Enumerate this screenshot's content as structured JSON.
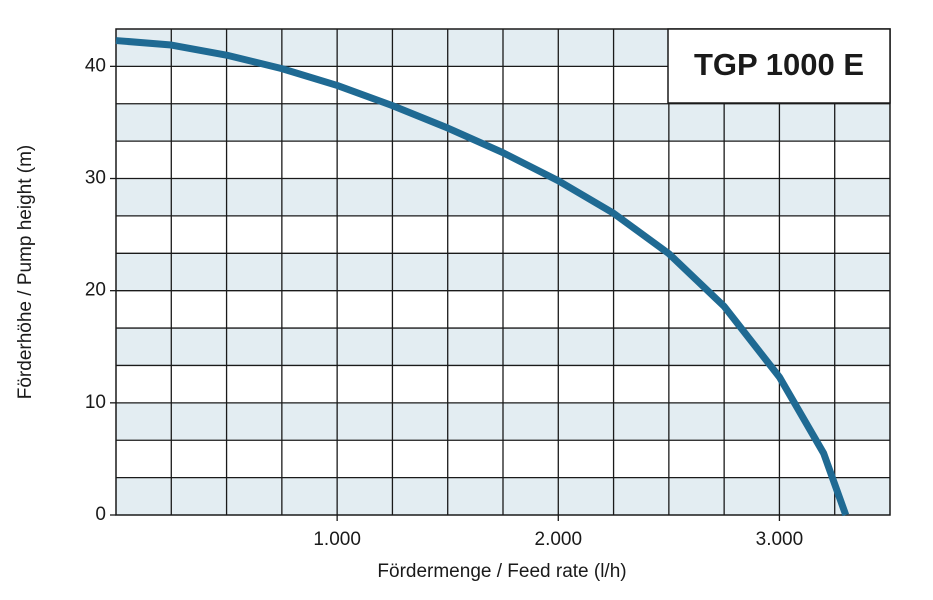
{
  "chart_data": {
    "type": "line",
    "title": "TGP 1000 E",
    "x_label": "Fördermenge / Feed rate (l/h)",
    "y_label": "Förderhöhe / Pump height (m)",
    "x": [
      0,
      250,
      500,
      750,
      1000,
      1250,
      1500,
      1750,
      2000,
      2250,
      2500,
      2750,
      3000,
      3200,
      3300
    ],
    "series": [
      {
        "color": "#1f6a93",
        "values": [
          42.3,
          41.9,
          41.0,
          39.8,
          38.3,
          36.5,
          34.5,
          32.3,
          29.8,
          26.9,
          23.3,
          18.6,
          12.3,
          5.5,
          0
        ]
      }
    ],
    "xlim": [
      0,
      3500
    ],
    "xticks": [
      {
        "value": 1000,
        "label": "1.000"
      },
      {
        "value": 2000,
        "label": "2.000"
      },
      {
        "value": 3000,
        "label": "3.000"
      }
    ],
    "ylim": [
      0,
      43.33
    ],
    "yticks": [
      0,
      10,
      20,
      30,
      40
    ],
    "grid": true,
    "band_color": "#e3edf2"
  }
}
